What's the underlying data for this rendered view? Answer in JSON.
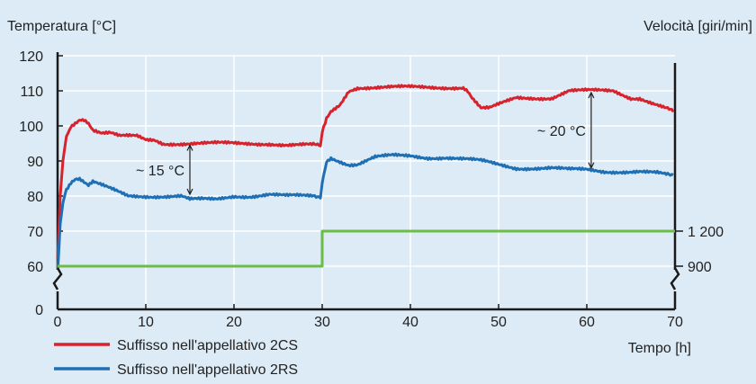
{
  "chart_data": {
    "type": "line",
    "ylabel_left": "Temperatura [°C]",
    "ylabel_right": "Velocità [giri/min]",
    "xlabel": "Tempo [h]",
    "xlim": [
      0,
      70
    ],
    "ylim_left": [
      0,
      120
    ],
    "y_break": true,
    "grid": true,
    "x_ticks": [
      0,
      10,
      20,
      30,
      40,
      50,
      60,
      70
    ],
    "x_tick_labels": [
      "0",
      "10",
      "20",
      "30",
      "40",
      "50",
      "60",
      "70"
    ],
    "y_ticks_left": [
      0,
      60,
      70,
      80,
      90,
      100,
      110,
      120
    ],
    "y_tick_labels_left": [
      "0",
      "60",
      "70",
      "80",
      "90",
      "100",
      "110",
      "120"
    ],
    "y_ticks_right": [
      {
        "label": "1 200",
        "value": 1200,
        "at_left": 70
      },
      {
        "label": "900",
        "value": 900,
        "at_left": 60
      }
    ],
    "series": [
      {
        "name": "Suffisso nell'appellativo 2CS",
        "color": "#d6232d",
        "axis": "left",
        "x": [
          0,
          0.3,
          0.6,
          1,
          1.5,
          2,
          2.5,
          3,
          3.5,
          4,
          5,
          6,
          7,
          8,
          9,
          10,
          11,
          12,
          13,
          14,
          15,
          16,
          18,
          20,
          22,
          24,
          26,
          28,
          29,
          29.8,
          30,
          30.5,
          31,
          32,
          33,
          34,
          36,
          38,
          40,
          42,
          44,
          45,
          46,
          46.5,
          47,
          48,
          49,
          50,
          51,
          52,
          54,
          56,
          57,
          58,
          59,
          60,
          61,
          62,
          63,
          64,
          65,
          66,
          67,
          68,
          69,
          69.8
        ],
        "values": [
          62,
          80,
          90,
          97,
          100,
          101,
          102,
          102,
          101,
          99,
          98,
          98,
          97,
          97,
          97,
          96,
          96,
          95,
          95,
          95,
          95,
          95,
          95,
          95,
          95,
          95,
          94.5,
          94.5,
          94.5,
          94.5,
          98,
          102,
          104,
          106,
          110,
          111,
          111,
          111,
          111,
          111,
          111,
          111,
          111,
          110,
          108,
          105,
          105,
          106,
          107,
          108,
          108,
          108,
          109,
          110,
          110,
          110,
          110,
          110,
          110,
          109,
          108,
          108,
          107,
          106,
          105,
          104
        ]
      },
      {
        "name": "Suffisso nell'appellativo 2RS",
        "color": "#1f6fb4",
        "axis": "left",
        "x": [
          0,
          0.3,
          0.6,
          1,
          1.5,
          2,
          2.5,
          3,
          3.5,
          4,
          5,
          6,
          7,
          8,
          9,
          10,
          12,
          14,
          15,
          16,
          18,
          20,
          22,
          24,
          26,
          28,
          29,
          29.8,
          30,
          30.5,
          31,
          32,
          33,
          34,
          35,
          36,
          38,
          40,
          42,
          44,
          46,
          48,
          50,
          52,
          54,
          56,
          58,
          60,
          62,
          64,
          66,
          68,
          69,
          69.8
        ],
        "values": [
          58,
          72,
          78,
          82,
          84,
          85,
          85,
          84,
          83,
          84,
          83,
          82,
          81,
          80,
          80,
          80,
          80,
          80,
          79,
          79,
          79,
          80,
          80,
          80.5,
          80,
          80,
          80,
          80,
          84,
          90,
          91,
          90,
          89,
          89,
          90,
          91,
          91.5,
          91.5,
          91,
          91,
          90.5,
          90,
          89,
          88,
          88,
          88,
          87.5,
          87.5,
          87,
          87,
          87,
          86.5,
          86,
          86
        ]
      },
      {
        "name": "",
        "color": "#6cbd45",
        "axis": "right",
        "x": [
          0,
          30,
          30,
          70
        ],
        "values_left_scale": [
          60,
          60,
          70,
          70
        ],
        "values": [
          900,
          900,
          1200,
          1200
        ]
      }
    ],
    "annotations": [
      {
        "text": "~ 15 °C",
        "x": 15,
        "y_from": 80,
        "y_to": 95
      },
      {
        "text": "~ 20 °C",
        "x": 60.5,
        "y_from": 87.5,
        "y_to": 110
      }
    ],
    "legend": [
      {
        "label": "Suffisso nell'appellativo 2CS",
        "color": "#d6232d"
      },
      {
        "label": "Suffisso nell'appellativo 2RS",
        "color": "#1f6fb4"
      }
    ],
    "legend_placement": "bottom-left",
    "colors": {
      "background": "#dcebf5",
      "grid": "#ffffff",
      "axis": "#1a1a1a"
    }
  }
}
